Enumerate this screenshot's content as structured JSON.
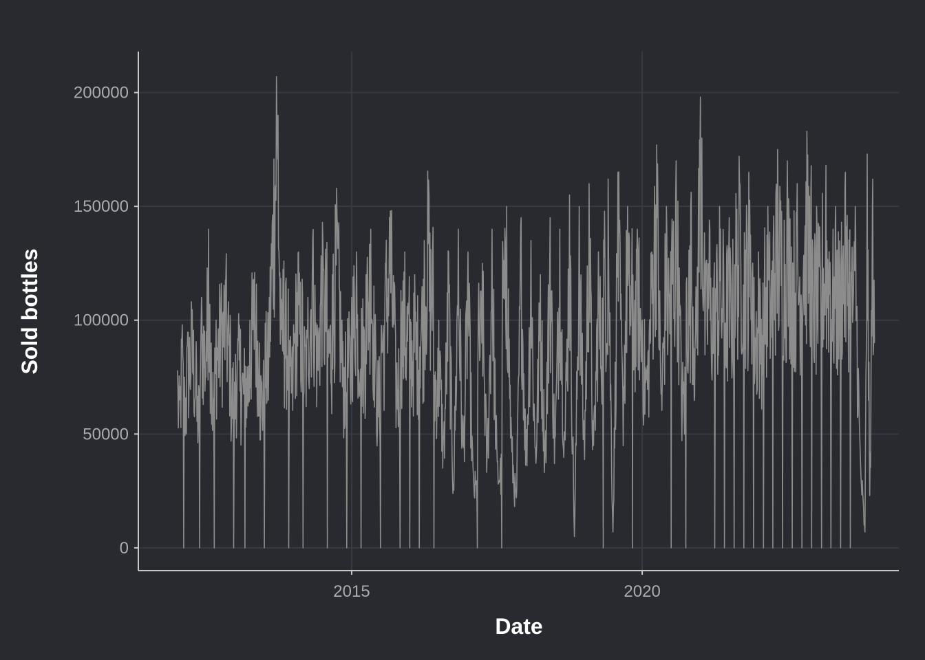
{
  "chart_data": {
    "type": "line",
    "xlabel": "Date",
    "ylabel": "Sold bottles",
    "xlim": [
      "2011-05-01",
      "2024-06-01"
    ],
    "ylim": [
      -10000,
      218000
    ],
    "x_ticks": [
      "2015-01-01",
      "2020-01-01"
    ],
    "x_tick_labels": [
      "2015",
      "2020"
    ],
    "y_ticks": [
      0,
      50000,
      100000,
      150000,
      200000
    ],
    "y_tick_labels": [
      "0",
      "50000",
      "100000",
      "150000",
      "200000"
    ],
    "grid": true,
    "legend": "none",
    "colors": {
      "background": "#282a2f",
      "line": "#8c8c8c",
      "grid": "#363a42",
      "axis": "#c8c8c8",
      "tick_text": "#a9abae",
      "title_text": "#ffffff"
    },
    "series": [
      {
        "values_description_note": null,
        "x_start": "2012-01-01",
        "x_end": "2023-12-31",
        "points": [
          [
            "2012-01-02",
            78000
          ],
          [
            "2012-01-15",
            65000
          ],
          [
            "2012-02-01",
            98000
          ],
          [
            "2012-02-10",
            0
          ],
          [
            "2012-03-01",
            88000
          ],
          [
            "2012-04-01",
            102000
          ],
          [
            "2012-05-01",
            80000
          ],
          [
            "2012-05-20",
            0
          ],
          [
            "2012-06-01",
            110000
          ],
          [
            "2012-07-01",
            95000
          ],
          [
            "2012-07-15",
            140000
          ],
          [
            "2012-08-01",
            90000
          ],
          [
            "2012-08-20",
            0
          ],
          [
            "2012-09-01",
            100000
          ],
          [
            "2012-10-01",
            108000
          ],
          [
            "2012-11-01",
            118000
          ],
          [
            "2012-12-01",
            92000
          ],
          [
            "2012-12-20",
            0
          ],
          [
            "2013-01-01",
            85000
          ],
          [
            "2013-02-01",
            96000
          ],
          [
            "2013-03-01",
            0
          ],
          [
            "2013-04-01",
            100000
          ],
          [
            "2013-05-01",
            121000
          ],
          [
            "2013-06-01",
            90000
          ],
          [
            "2013-07-01",
            0
          ],
          [
            "2013-08-01",
            110000
          ],
          [
            "2013-09-15",
            207000
          ],
          [
            "2013-09-25",
            190000
          ],
          [
            "2013-10-15",
            96000
          ],
          [
            "2013-11-01",
            126000
          ],
          [
            "2013-12-01",
            0
          ],
          [
            "2014-01-01",
            98000
          ],
          [
            "2014-02-01",
            130000
          ],
          [
            "2014-03-01",
            0
          ],
          [
            "2014-04-01",
            110000
          ],
          [
            "2014-05-01",
            135000
          ],
          [
            "2014-06-01",
            93000
          ],
          [
            "2014-07-01",
            143000
          ],
          [
            "2014-08-01",
            0
          ],
          [
            "2014-09-01",
            120000
          ],
          [
            "2014-10-01",
            145000
          ],
          [
            "2014-11-01",
            100000
          ],
          [
            "2014-12-01",
            0
          ],
          [
            "2015-01-01",
            110000
          ],
          [
            "2015-02-01",
            130000
          ],
          [
            "2015-03-01",
            0
          ],
          [
            "2015-04-01",
            120000
          ],
          [
            "2015-05-01",
            140000
          ],
          [
            "2015-06-01",
            90000
          ],
          [
            "2015-07-01",
            0
          ],
          [
            "2015-08-01",
            125000
          ],
          [
            "2015-09-01",
            148000
          ],
          [
            "2015-10-01",
            100000
          ],
          [
            "2015-11-01",
            0
          ],
          [
            "2015-12-01",
            130000
          ],
          [
            "2016-01-01",
            0
          ],
          [
            "2016-02-01",
            120000
          ],
          [
            "2016-03-01",
            0
          ],
          [
            "2016-04-01",
            135000
          ],
          [
            "2016-05-01",
            155000
          ],
          [
            "2016-06-01",
            0
          ],
          [
            "2016-07-01",
            100000
          ],
          [
            "2016-08-01",
            48000
          ],
          [
            "2016-09-01",
            130000
          ],
          [
            "2016-10-01",
            28000
          ],
          [
            "2016-11-01",
            140000
          ],
          [
            "2016-12-01",
            45000
          ],
          [
            "2017-01-01",
            130000
          ],
          [
            "2017-02-01",
            36000
          ],
          [
            "2017-03-01",
            0
          ],
          [
            "2017-04-01",
            125000
          ],
          [
            "2017-05-01",
            40000
          ],
          [
            "2017-06-01",
            140000
          ],
          [
            "2017-07-01",
            45000
          ],
          [
            "2017-08-01",
            0
          ],
          [
            "2017-09-01",
            150000
          ],
          [
            "2017-10-01",
            50000
          ],
          [
            "2017-11-01",
            22000
          ],
          [
            "2017-12-01",
            145000
          ],
          [
            "2018-01-01",
            42000
          ],
          [
            "2018-02-01",
            135000
          ],
          [
            "2018-03-01",
            44000
          ],
          [
            "2018-04-01",
            120000
          ],
          [
            "2018-05-01",
            46000
          ],
          [
            "2018-06-01",
            145000
          ],
          [
            "2018-07-01",
            48000
          ],
          [
            "2018-08-01",
            140000
          ],
          [
            "2018-09-01",
            50000
          ],
          [
            "2018-10-01",
            155000
          ],
          [
            "2018-11-01",
            5000
          ],
          [
            "2018-12-01",
            150000
          ],
          [
            "2019-01-01",
            48000
          ],
          [
            "2019-02-01",
            160000
          ],
          [
            "2019-03-01",
            45000
          ],
          [
            "2019-04-01",
            130000
          ],
          [
            "2019-05-01",
            0
          ],
          [
            "2019-06-01",
            162000
          ],
          [
            "2019-07-01",
            7000
          ],
          [
            "2019-08-01",
            165000
          ],
          [
            "2019-09-01",
            70000
          ],
          [
            "2019-10-01",
            150000
          ],
          [
            "2019-11-01",
            0
          ],
          [
            "2019-12-01",
            140000
          ],
          [
            "2020-01-01",
            100000
          ],
          [
            "2020-02-01",
            80000
          ],
          [
            "2020-03-01",
            130000
          ],
          [
            "2020-04-01",
            177000
          ],
          [
            "2020-05-01",
            70000
          ],
          [
            "2020-06-01",
            150000
          ],
          [
            "2020-07-01",
            0
          ],
          [
            "2020-08-01",
            170000
          ],
          [
            "2020-09-01",
            90000
          ],
          [
            "2020-10-01",
            0
          ],
          [
            "2020-11-01",
            150000
          ],
          [
            "2020-12-01",
            95000
          ],
          [
            "2021-01-01",
            198000
          ],
          [
            "2021-01-10",
            180000
          ],
          [
            "2021-02-01",
            110000
          ],
          [
            "2021-03-01",
            140000
          ],
          [
            "2021-04-01",
            0
          ],
          [
            "2021-05-01",
            150000
          ],
          [
            "2021-06-01",
            0
          ],
          [
            "2021-07-01",
            145000
          ],
          [
            "2021-08-01",
            0
          ],
          [
            "2021-09-01",
            172000
          ],
          [
            "2021-10-01",
            0
          ],
          [
            "2021-11-01",
            165000
          ],
          [
            "2021-12-01",
            0
          ],
          [
            "2022-01-01",
            130000
          ],
          [
            "2022-02-01",
            0
          ],
          [
            "2022-03-01",
            150000
          ],
          [
            "2022-04-01",
            0
          ],
          [
            "2022-05-01",
            175000
          ],
          [
            "2022-06-01",
            0
          ],
          [
            "2022-07-01",
            170000
          ],
          [
            "2022-08-01",
            0
          ],
          [
            "2022-09-01",
            160000
          ],
          [
            "2022-10-01",
            0
          ],
          [
            "2022-11-01",
            183000
          ],
          [
            "2022-12-01",
            0
          ],
          [
            "2023-01-01",
            150000
          ],
          [
            "2023-02-01",
            0
          ],
          [
            "2023-03-01",
            168000
          ],
          [
            "2023-04-01",
            0
          ],
          [
            "2023-05-01",
            150000
          ],
          [
            "2023-06-01",
            0
          ],
          [
            "2023-07-01",
            165000
          ],
          [
            "2023-08-01",
            0
          ],
          [
            "2023-09-01",
            150000
          ],
          [
            "2023-10-01",
            45000
          ],
          [
            "2023-11-01",
            7000
          ],
          [
            "2023-11-15",
            173000
          ],
          [
            "2023-12-01",
            23000
          ],
          [
            "2023-12-20",
            162000
          ],
          [
            "2023-12-31",
            90000
          ]
        ]
      }
    ]
  }
}
